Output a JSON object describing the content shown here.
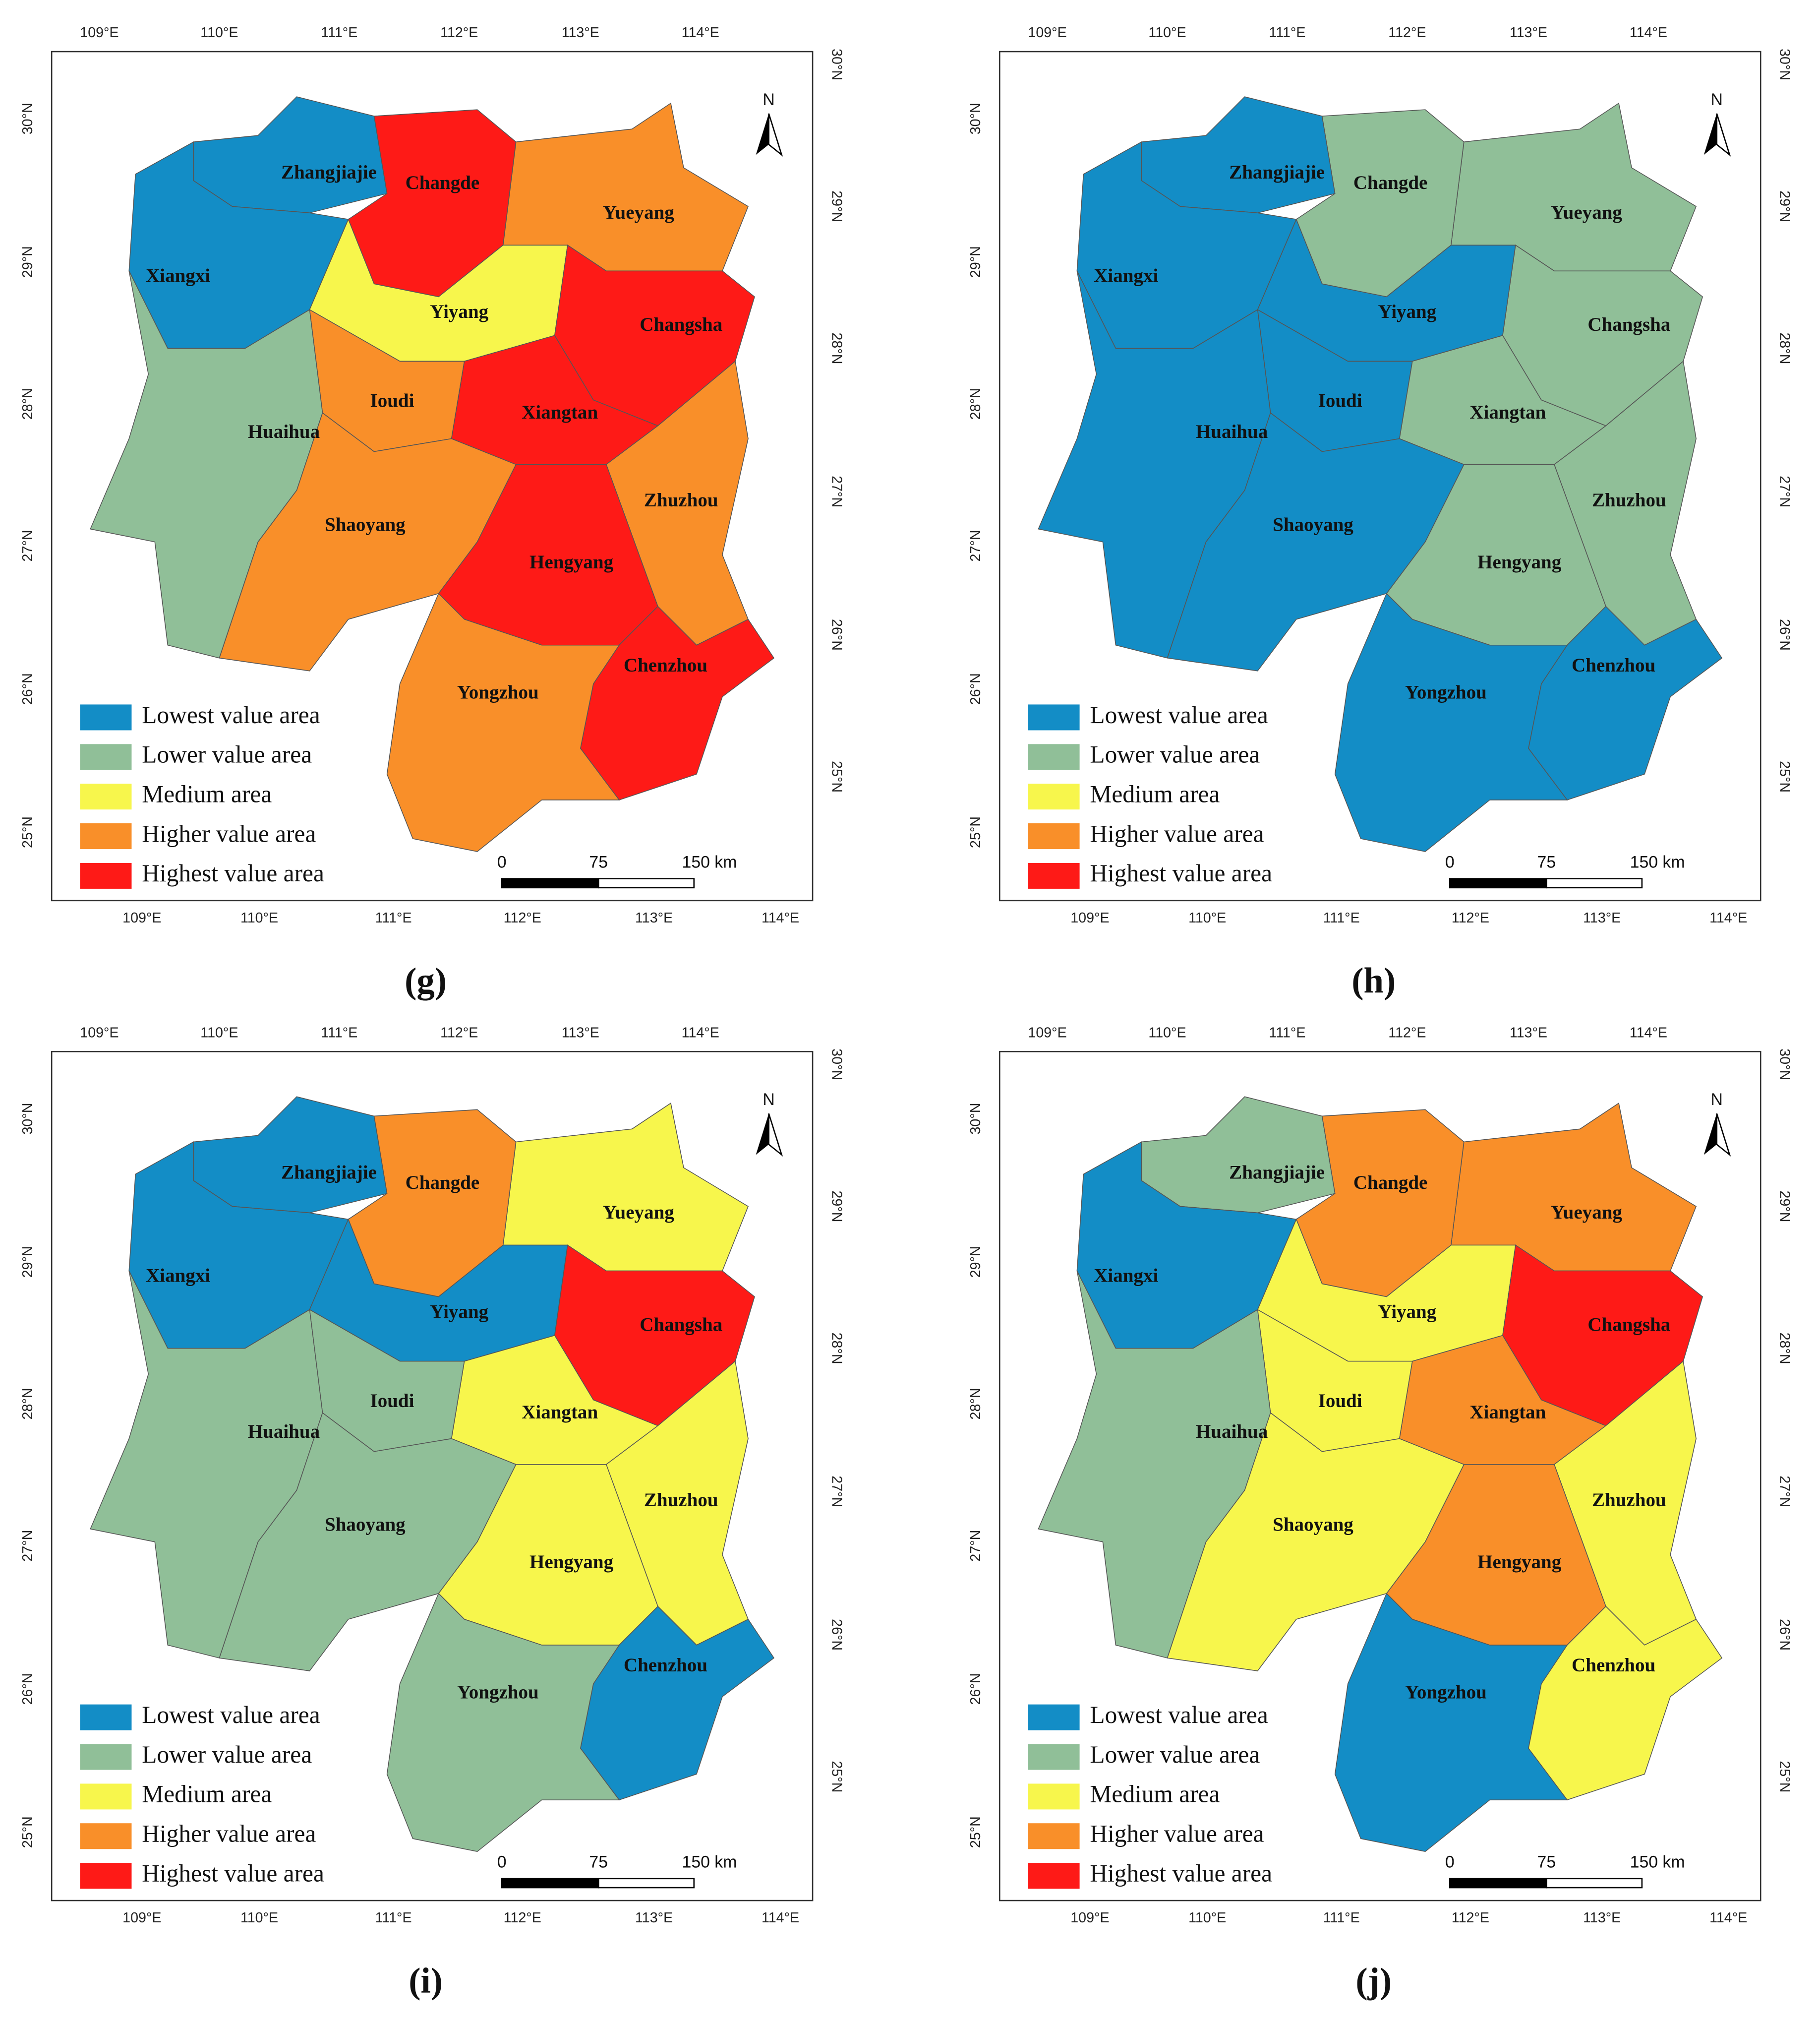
{
  "lon_labels": [
    "109°E",
    "110°E",
    "111°E",
    "112°E",
    "113°E",
    "114°E"
  ],
  "lat_labels": [
    "30°N",
    "29°N",
    "28°N",
    "27°N",
    "26°N",
    "25°N"
  ],
  "north": "N",
  "scale_labels": [
    "0",
    "75",
    "150 km"
  ],
  "cities": [
    "Zhangjiajie",
    "Changde",
    "Yueyang",
    "Xiangxi",
    "Yiyang",
    "Changsha",
    "Ioudi",
    "Huaihua",
    "Xiangtan",
    "Zhuzhou",
    "Shaoyang",
    "Hengyang",
    "Chenzhou",
    "Yongzhou"
  ],
  "legend": [
    {
      "label": "Lowest value area",
      "color": "#138dc6"
    },
    {
      "label": "Lower value area",
      "color": "#90bf98"
    },
    {
      "label": "Medium area",
      "color": "#f7f64c"
    },
    {
      "label": "Higher value area",
      "color": "#f98f29"
    },
    {
      "label": "Highest value area",
      "color": "#fe1a17"
    }
  ],
  "panels": [
    {
      "label": "(g)",
      "region_colors": [
        "#138dc6",
        "#fe1a17",
        "#f98f29",
        "#138dc6",
        "#f7f64c",
        "#fe1a17",
        "#f98f29",
        "#90bf98",
        "#fe1a17",
        "#f98f29",
        "#f98f29",
        "#fe1a17",
        "#fe1a17",
        "#f98f29"
      ]
    },
    {
      "label": "(h)",
      "region_colors": [
        "#138dc6",
        "#90bf98",
        "#90bf98",
        "#138dc6",
        "#138dc6",
        "#90bf98",
        "#138dc6",
        "#138dc6",
        "#90bf98",
        "#90bf98",
        "#138dc6",
        "#90bf98",
        "#138dc6",
        "#138dc6"
      ]
    },
    {
      "label": "(i)",
      "region_colors": [
        "#138dc6",
        "#f98f29",
        "#f7f64c",
        "#138dc6",
        "#138dc6",
        "#fe1a17",
        "#90bf98",
        "#90bf98",
        "#f7f64c",
        "#f7f64c",
        "#90bf98",
        "#f7f64c",
        "#138dc6",
        "#90bf98"
      ]
    },
    {
      "label": "(j)",
      "region_colors": [
        "#90bf98",
        "#f98f29",
        "#f98f29",
        "#138dc6",
        "#f7f64c",
        "#fe1a17",
        "#f7f64c",
        "#90bf98",
        "#f98f29",
        "#f7f64c",
        "#f7f64c",
        "#f98f29",
        "#f7f64c",
        "#138dc6"
      ]
    }
  ]
}
